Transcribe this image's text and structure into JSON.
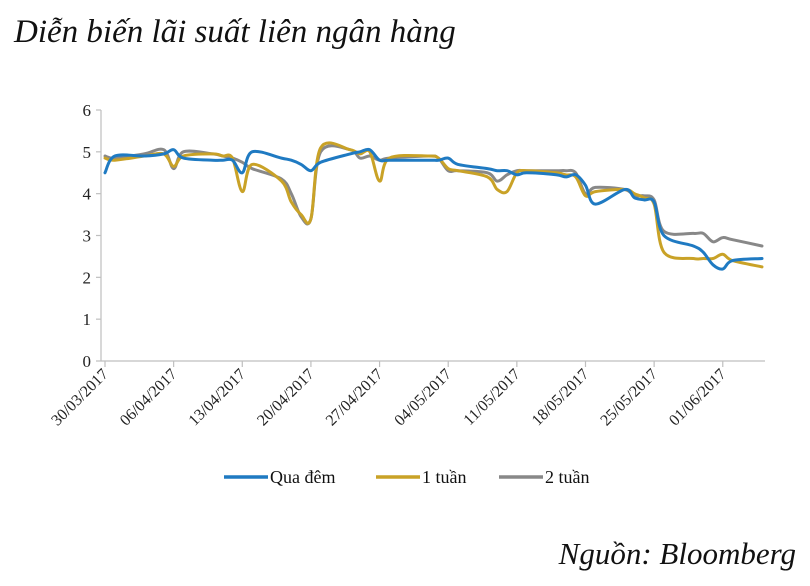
{
  "chart_data": {
    "type": "line",
    "title": "Diễn biến lãi suất liên ngân hàng",
    "source": "Nguồn: Bloomberg",
    "xlabel": "",
    "ylabel": "",
    "ylim": [
      0,
      6
    ],
    "yticks": [
      "0",
      "1",
      "2",
      "3",
      "4",
      "5",
      "6"
    ],
    "x_tick_labels": [
      "30/03/2017",
      "06/04/2017",
      "13/04/2017",
      "20/04/2017",
      "27/04/2017",
      "04/05/2017",
      "11/05/2017",
      "18/05/2017",
      "25/05/2017",
      "01/06/2017"
    ],
    "grid": false,
    "legend_position": "bottom",
    "series": [
      {
        "name": "Qua đêm",
        "color": "#1f7ac2",
        "points": [
          [
            "30/03",
            4.5
          ],
          [
            "31/03",
            4.9
          ],
          [
            "03/04",
            4.9
          ],
          [
            "05/04",
            4.95
          ],
          [
            "06/04",
            5.05
          ],
          [
            "07/04",
            4.85
          ],
          [
            "10/04",
            4.8
          ],
          [
            "11/04",
            4.8
          ],
          [
            "12/04",
            4.8
          ],
          [
            "13/04",
            4.5
          ],
          [
            "14/04",
            5.0
          ],
          [
            "17/04",
            4.85
          ],
          [
            "18/04",
            4.8
          ],
          [
            "19/04",
            4.7
          ],
          [
            "20/04",
            4.55
          ],
          [
            "21/04",
            4.75
          ],
          [
            "24/04",
            4.95
          ],
          [
            "25/04",
            5.0
          ],
          [
            "26/04",
            5.05
          ],
          [
            "27/04",
            4.8
          ],
          [
            "28/04",
            4.8
          ],
          [
            "02/05",
            4.8
          ],
          [
            "03/05",
            4.8
          ],
          [
            "04/05",
            4.85
          ],
          [
            "05/05",
            4.7
          ],
          [
            "08/05",
            4.6
          ],
          [
            "09/05",
            4.55
          ],
          [
            "10/05",
            4.55
          ],
          [
            "11/05",
            4.45
          ],
          [
            "12/05",
            4.5
          ],
          [
            "15/05",
            4.45
          ],
          [
            "16/05",
            4.4
          ],
          [
            "17/05",
            4.45
          ],
          [
            "18/05",
            4.2
          ],
          [
            "19/05",
            3.75
          ],
          [
            "22/05",
            4.1
          ],
          [
            "23/05",
            3.9
          ],
          [
            "24/05",
            3.85
          ],
          [
            "25/05",
            3.8
          ],
          [
            "26/05",
            3.0
          ],
          [
            "29/05",
            2.75
          ],
          [
            "30/05",
            2.6
          ],
          [
            "31/05",
            2.3
          ],
          [
            "01/06",
            2.2
          ],
          [
            "02/06",
            2.4
          ],
          [
            "05/06",
            2.45
          ]
        ]
      },
      {
        "name": "1 tuần",
        "color": "#c9a227",
        "points": [
          [
            "30/03",
            4.85
          ],
          [
            "31/03",
            4.8
          ],
          [
            "03/04",
            4.9
          ],
          [
            "05/04",
            4.95
          ],
          [
            "06/04",
            4.65
          ],
          [
            "07/04",
            4.9
          ],
          [
            "10/04",
            4.95
          ],
          [
            "11/04",
            4.9
          ],
          [
            "12/04",
            4.85
          ],
          [
            "13/04",
            4.05
          ],
          [
            "14/04",
            4.7
          ],
          [
            "17/04",
            4.3
          ],
          [
            "18/04",
            3.8
          ],
          [
            "19/04",
            3.5
          ],
          [
            "20/04",
            3.4
          ],
          [
            "21/04",
            5.1
          ],
          [
            "24/04",
            5.05
          ],
          [
            "25/04",
            4.95
          ],
          [
            "26/04",
            5.0
          ],
          [
            "27/04",
            4.3
          ],
          [
            "28/04",
            4.85
          ],
          [
            "02/05",
            4.9
          ],
          [
            "03/05",
            4.85
          ],
          [
            "04/05",
            4.6
          ],
          [
            "05/05",
            4.55
          ],
          [
            "08/05",
            4.4
          ],
          [
            "09/05",
            4.1
          ],
          [
            "10/05",
            4.05
          ],
          [
            "11/05",
            4.5
          ],
          [
            "12/05",
            4.55
          ],
          [
            "15/05",
            4.5
          ],
          [
            "16/05",
            4.45
          ],
          [
            "17/05",
            4.4
          ],
          [
            "18/05",
            3.95
          ],
          [
            "19/05",
            4.05
          ],
          [
            "22/05",
            4.1
          ],
          [
            "23/05",
            4.0
          ],
          [
            "24/05",
            3.9
          ],
          [
            "25/05",
            3.75
          ],
          [
            "26/05",
            2.6
          ],
          [
            "29/05",
            2.45
          ],
          [
            "30/05",
            2.45
          ],
          [
            "31/05",
            2.45
          ],
          [
            "01/06",
            2.55
          ],
          [
            "02/06",
            2.4
          ],
          [
            "05/06",
            2.25
          ]
        ]
      },
      {
        "name": "2 tuần",
        "color": "#888888",
        "points": [
          [
            "30/03",
            4.9
          ],
          [
            "31/03",
            4.85
          ],
          [
            "03/04",
            4.95
          ],
          [
            "05/04",
            5.05
          ],
          [
            "06/04",
            4.6
          ],
          [
            "07/04",
            5.0
          ],
          [
            "10/04",
            4.95
          ],
          [
            "11/04",
            4.9
          ],
          [
            "12/04",
            4.85
          ],
          [
            "13/04",
            4.75
          ],
          [
            "14/04",
            4.6
          ],
          [
            "17/04",
            4.35
          ],
          [
            "18/04",
            4.0
          ],
          [
            "19/04",
            3.45
          ],
          [
            "20/04",
            3.4
          ],
          [
            "21/04",
            5.0
          ],
          [
            "24/04",
            5.05
          ],
          [
            "25/04",
            4.85
          ],
          [
            "26/04",
            4.9
          ],
          [
            "27/04",
            4.8
          ],
          [
            "28/04",
            4.85
          ],
          [
            "02/05",
            4.9
          ],
          [
            "03/05",
            4.85
          ],
          [
            "04/05",
            4.55
          ],
          [
            "05/05",
            4.55
          ],
          [
            "08/05",
            4.5
          ],
          [
            "09/05",
            4.3
          ],
          [
            "10/05",
            4.45
          ],
          [
            "11/05",
            4.55
          ],
          [
            "12/05",
            4.55
          ],
          [
            "15/05",
            4.55
          ],
          [
            "16/05",
            4.55
          ],
          [
            "17/05",
            4.5
          ],
          [
            "18/05",
            4.0
          ],
          [
            "19/05",
            4.15
          ],
          [
            "22/05",
            4.1
          ],
          [
            "23/05",
            3.95
          ],
          [
            "24/05",
            3.95
          ],
          [
            "25/05",
            3.85
          ],
          [
            "26/05",
            3.1
          ],
          [
            "29/05",
            3.05
          ],
          [
            "30/05",
            3.05
          ],
          [
            "31/05",
            2.85
          ],
          [
            "01/06",
            2.95
          ],
          [
            "02/06",
            2.9
          ],
          [
            "05/06",
            2.75
          ]
        ]
      }
    ]
  }
}
